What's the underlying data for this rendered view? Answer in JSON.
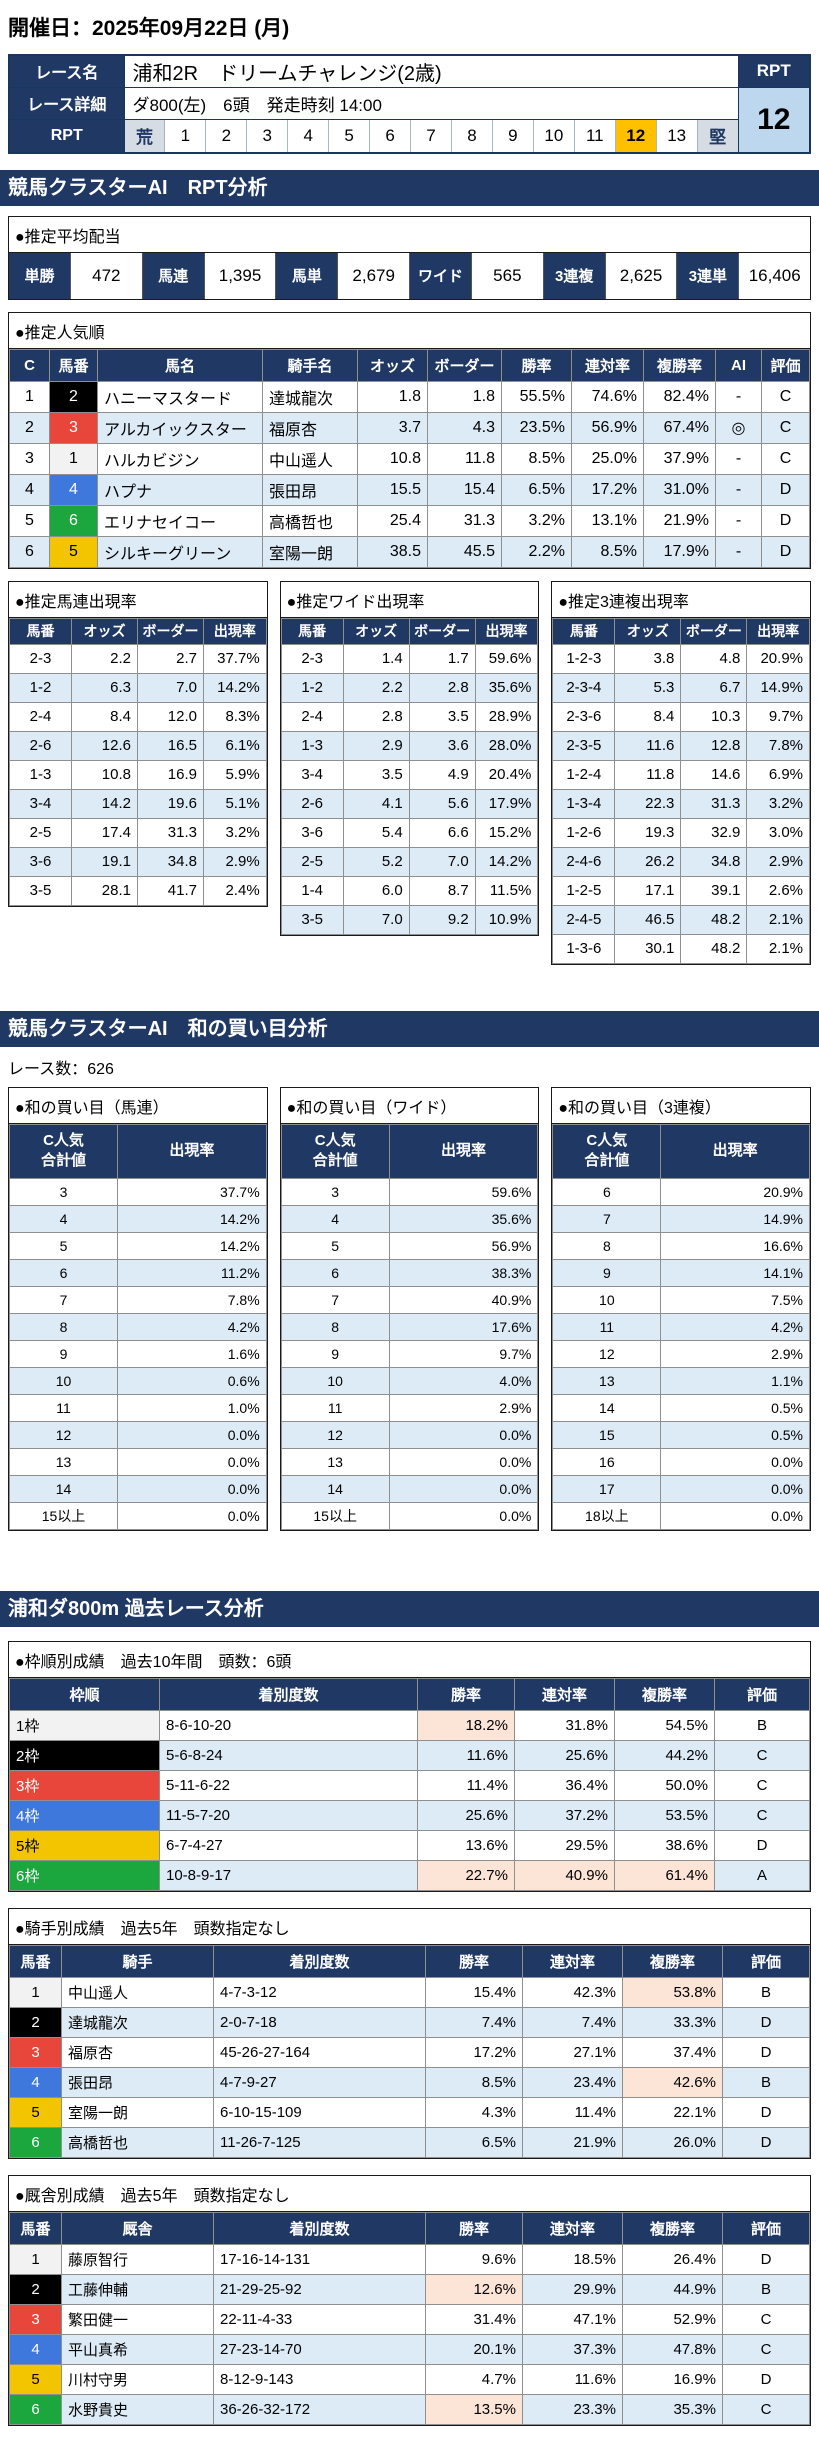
{
  "page": {
    "date_heading": "開催日：2025年09月22日 (月)"
  },
  "race_header": {
    "race_name_label": "レース名",
    "race_name": "浦和2R　ドリームチャレンジ(2歳)",
    "race_detail_label": "レース詳細",
    "race_detail": "ダ800(左)　6頭　発走時刻 14:00",
    "rpt_row_label": "RPT",
    "rpt_col_label": "RPT",
    "rpt_value": "12",
    "rpt_scale": [
      "荒",
      "1",
      "2",
      "3",
      "4",
      "5",
      "6",
      "7",
      "8",
      "9",
      "10",
      "11",
      "12",
      "13",
      "堅"
    ],
    "rpt_selected": "12"
  },
  "section_titles": {
    "rpt_analysis": "競馬クラスターAI　RPT分析",
    "wa_kaime": "競馬クラスターAI　和の買い目分析",
    "past_race": "浦和ダ800m 過去レース分析"
  },
  "race_count_line": "レース数：626",
  "payout": {
    "title": "●推定平均配当",
    "items": [
      {
        "label": "単勝",
        "value": "472"
      },
      {
        "label": "馬連",
        "value": "1,395"
      },
      {
        "label": "馬単",
        "value": "2,679"
      },
      {
        "label": "ワイド",
        "value": "565"
      },
      {
        "label": "3連複",
        "value": "2,625"
      },
      {
        "label": "3連単",
        "value": "16,406"
      }
    ]
  },
  "popularity": {
    "title": "●推定人気順",
    "headers": [
      "C",
      "馬番",
      "馬名",
      "騎手名",
      "オッズ",
      "ボーダー",
      "勝率",
      "連対率",
      "複勝率",
      "AI",
      "評価"
    ],
    "rows": [
      {
        "c": "1",
        "num": "2",
        "horse": "ハニーマスタード",
        "jockey": "達城龍次",
        "odds": "1.8",
        "border": "1.8",
        "win": "55.5%",
        "ren": "74.6%",
        "fuku": "82.4%",
        "ai": "-",
        "eval": "C"
      },
      {
        "c": "2",
        "num": "3",
        "horse": "アルカイックスター",
        "jockey": "福原杏",
        "odds": "3.7",
        "border": "4.3",
        "win": "23.5%",
        "ren": "56.9%",
        "fuku": "67.4%",
        "ai": "◎",
        "eval": "C"
      },
      {
        "c": "3",
        "num": "1",
        "horse": "ハルカビジン",
        "jockey": "中山遥人",
        "odds": "10.8",
        "border": "11.8",
        "win": "8.5%",
        "ren": "25.0%",
        "fuku": "37.9%",
        "ai": "-",
        "eval": "C"
      },
      {
        "c": "4",
        "num": "4",
        "horse": "ハプナ",
        "jockey": "張田昂",
        "odds": "15.5",
        "border": "15.4",
        "win": "6.5%",
        "ren": "17.2%",
        "fuku": "31.0%",
        "ai": "-",
        "eval": "D"
      },
      {
        "c": "5",
        "num": "6",
        "horse": "エリナセイコー",
        "jockey": "高橋哲也",
        "odds": "25.4",
        "border": "31.3",
        "win": "3.2%",
        "ren": "13.1%",
        "fuku": "21.9%",
        "ai": "-",
        "eval": "D"
      },
      {
        "c": "6",
        "num": "5",
        "horse": "シルキーグリーン",
        "jockey": "室陽一朗",
        "odds": "38.5",
        "border": "45.5",
        "win": "2.2%",
        "ren": "8.5%",
        "fuku": "17.9%",
        "ai": "-",
        "eval": "D"
      }
    ]
  },
  "prob_tables": [
    {
      "title": "●推定馬連出現率",
      "headers": [
        "馬番",
        "オッズ",
        "ボーダー",
        "出現率"
      ],
      "rows": [
        [
          "2-3",
          "2.2",
          "2.7",
          "37.7%"
        ],
        [
          "1-2",
          "6.3",
          "7.0",
          "14.2%"
        ],
        [
          "2-4",
          "8.4",
          "12.0",
          "8.3%"
        ],
        [
          "2-6",
          "12.6",
          "16.5",
          "6.1%"
        ],
        [
          "1-3",
          "10.8",
          "16.9",
          "5.9%"
        ],
        [
          "3-4",
          "14.2",
          "19.6",
          "5.1%"
        ],
        [
          "2-5",
          "17.4",
          "31.3",
          "3.2%"
        ],
        [
          "3-6",
          "19.1",
          "34.8",
          "2.9%"
        ],
        [
          "3-5",
          "28.1",
          "41.7",
          "2.4%"
        ]
      ]
    },
    {
      "title": "●推定ワイド出現率",
      "headers": [
        "馬番",
        "オッズ",
        "ボーダー",
        "出現率"
      ],
      "rows": [
        [
          "2-3",
          "1.4",
          "1.7",
          "59.6%"
        ],
        [
          "1-2",
          "2.2",
          "2.8",
          "35.6%"
        ],
        [
          "2-4",
          "2.8",
          "3.5",
          "28.9%"
        ],
        [
          "1-3",
          "2.9",
          "3.6",
          "28.0%"
        ],
        [
          "3-4",
          "3.5",
          "4.9",
          "20.4%"
        ],
        [
          "2-6",
          "4.1",
          "5.6",
          "17.9%"
        ],
        [
          "3-6",
          "5.4",
          "6.6",
          "15.2%"
        ],
        [
          "2-5",
          "5.2",
          "7.0",
          "14.2%"
        ],
        [
          "1-4",
          "6.0",
          "8.7",
          "11.5%"
        ],
        [
          "3-5",
          "7.0",
          "9.2",
          "10.9%"
        ]
      ]
    },
    {
      "title": "●推定3連複出現率",
      "headers": [
        "馬番",
        "オッズ",
        "ボーダー",
        "出現率"
      ],
      "rows": [
        [
          "1-2-3",
          "3.8",
          "4.8",
          "20.9%"
        ],
        [
          "2-3-4",
          "5.3",
          "6.7",
          "14.9%"
        ],
        [
          "2-3-6",
          "8.4",
          "10.3",
          "9.7%"
        ],
        [
          "2-3-5",
          "11.6",
          "12.8",
          "7.8%"
        ],
        [
          "1-2-4",
          "11.8",
          "14.6",
          "6.9%"
        ],
        [
          "1-3-4",
          "22.3",
          "31.3",
          "3.2%"
        ],
        [
          "1-2-6",
          "19.3",
          "32.9",
          "3.0%"
        ],
        [
          "2-4-6",
          "26.2",
          "34.8",
          "2.9%"
        ],
        [
          "1-2-5",
          "17.1",
          "39.1",
          "2.6%"
        ],
        [
          "2-4-5",
          "46.5",
          "48.2",
          "2.1%"
        ],
        [
          "1-3-6",
          "30.1",
          "48.2",
          "2.1%"
        ]
      ]
    }
  ],
  "kaime_tables": [
    {
      "title": "●和の買い目（馬連）",
      "col1": "C人気\n合計値",
      "col2": "出現率",
      "rows": [
        [
          "3",
          "37.7%"
        ],
        [
          "4",
          "14.2%"
        ],
        [
          "5",
          "14.2%"
        ],
        [
          "6",
          "11.2%"
        ],
        [
          "7",
          "7.8%"
        ],
        [
          "8",
          "4.2%"
        ],
        [
          "9",
          "1.6%"
        ],
        [
          "10",
          "0.6%"
        ],
        [
          "11",
          "1.0%"
        ],
        [
          "12",
          "0.0%"
        ],
        [
          "13",
          "0.0%"
        ],
        [
          "14",
          "0.0%"
        ],
        [
          "15以上",
          "0.0%"
        ]
      ]
    },
    {
      "title": "●和の買い目（ワイド）",
      "col1": "C人気\n合計値",
      "col2": "出現率",
      "rows": [
        [
          "3",
          "59.6%"
        ],
        [
          "4",
          "35.6%"
        ],
        [
          "5",
          "56.9%"
        ],
        [
          "6",
          "38.3%"
        ],
        [
          "7",
          "40.9%"
        ],
        [
          "8",
          "17.6%"
        ],
        [
          "9",
          "9.7%"
        ],
        [
          "10",
          "4.0%"
        ],
        [
          "11",
          "2.9%"
        ],
        [
          "12",
          "0.0%"
        ],
        [
          "13",
          "0.0%"
        ],
        [
          "14",
          "0.0%"
        ],
        [
          "15以上",
          "0.0%"
        ]
      ]
    },
    {
      "title": "●和の買い目（3連複）",
      "col1": "C人気\n合計値",
      "col2": "出現率",
      "rows": [
        [
          "6",
          "20.9%"
        ],
        [
          "7",
          "14.9%"
        ],
        [
          "8",
          "16.6%"
        ],
        [
          "9",
          "14.1%"
        ],
        [
          "10",
          "7.5%"
        ],
        [
          "11",
          "4.2%"
        ],
        [
          "12",
          "2.9%"
        ],
        [
          "13",
          "1.1%"
        ],
        [
          "14",
          "0.5%"
        ],
        [
          "15",
          "0.5%"
        ],
        [
          "16",
          "0.0%"
        ],
        [
          "17",
          "0.0%"
        ],
        [
          "18以上",
          "0.0%"
        ]
      ]
    }
  ],
  "past_tables": [
    {
      "title": "●枠順別成績　過去10年間　頭数：6頭",
      "headers": [
        "枠順",
        "着別度数",
        "勝率",
        "連対率",
        "複勝率",
        "評価"
      ],
      "rows": [
        {
          "label": "1枠",
          "waku": "1",
          "record": "8-6-10-20",
          "win": "18.2%",
          "ren": "31.8%",
          "fuku": "54.5%",
          "eval": "B",
          "hl": [
            "win"
          ]
        },
        {
          "label": "2枠",
          "waku": "2",
          "record": "5-6-8-24",
          "win": "11.6%",
          "ren": "25.6%",
          "fuku": "44.2%",
          "eval": "C",
          "hl": []
        },
        {
          "label": "3枠",
          "waku": "3",
          "record": "5-11-6-22",
          "win": "11.4%",
          "ren": "36.4%",
          "fuku": "50.0%",
          "eval": "C",
          "hl": []
        },
        {
          "label": "4枠",
          "waku": "4",
          "record": "11-5-7-20",
          "win": "25.6%",
          "ren": "37.2%",
          "fuku": "53.5%",
          "eval": "C",
          "hl": []
        },
        {
          "label": "5枠",
          "waku": "5",
          "record": "6-7-4-27",
          "win": "13.6%",
          "ren": "29.5%",
          "fuku": "38.6%",
          "eval": "D",
          "hl": []
        },
        {
          "label": "6枠",
          "waku": "6",
          "record": "10-8-9-17",
          "win": "22.7%",
          "ren": "40.9%",
          "fuku": "61.4%",
          "eval": "A",
          "hl": [
            "win",
            "ren",
            "fuku"
          ]
        }
      ]
    },
    {
      "title": "●騎手別成績　過去5年　頭数指定なし",
      "headers": [
        "馬番",
        "騎手",
        "着別度数",
        "勝率",
        "連対率",
        "複勝率",
        "評価"
      ],
      "rows": [
        {
          "num": "1",
          "name": "中山遥人",
          "record": "4-7-3-12",
          "win": "15.4%",
          "ren": "42.3%",
          "fuku": "53.8%",
          "eval": "B",
          "hl": [
            "fuku"
          ]
        },
        {
          "num": "2",
          "name": "達城龍次",
          "record": "2-0-7-18",
          "win": "7.4%",
          "ren": "7.4%",
          "fuku": "33.3%",
          "eval": "D",
          "hl": []
        },
        {
          "num": "3",
          "name": "福原杏",
          "record": "45-26-27-164",
          "win": "17.2%",
          "ren": "27.1%",
          "fuku": "37.4%",
          "eval": "D",
          "hl": []
        },
        {
          "num": "4",
          "name": "張田昂",
          "record": "4-7-9-27",
          "win": "8.5%",
          "ren": "23.4%",
          "fuku": "42.6%",
          "eval": "B",
          "hl": [
            "fuku"
          ]
        },
        {
          "num": "5",
          "name": "室陽一朗",
          "record": "6-10-15-109",
          "win": "4.3%",
          "ren": "11.4%",
          "fuku": "22.1%",
          "eval": "D",
          "hl": []
        },
        {
          "num": "6",
          "name": "高橋哲也",
          "record": "11-26-7-125",
          "win": "6.5%",
          "ren": "21.9%",
          "fuku": "26.0%",
          "eval": "D",
          "hl": []
        }
      ]
    },
    {
      "title": "●厩舎別成績　過去5年　頭数指定なし",
      "headers": [
        "馬番",
        "厩舎",
        "着別度数",
        "勝率",
        "連対率",
        "複勝率",
        "評価"
      ],
      "rows": [
        {
          "num": "1",
          "name": "藤原智行",
          "record": "17-16-14-131",
          "win": "9.6%",
          "ren": "18.5%",
          "fuku": "26.4%",
          "eval": "D",
          "hl": []
        },
        {
          "num": "2",
          "name": "工藤伸輔",
          "record": "21-29-25-92",
          "win": "12.6%",
          "ren": "29.9%",
          "fuku": "44.9%",
          "eval": "B",
          "hl": [
            "win"
          ]
        },
        {
          "num": "3",
          "name": "繁田健一",
          "record": "22-11-4-33",
          "win": "31.4%",
          "ren": "47.1%",
          "fuku": "52.9%",
          "eval": "C",
          "hl": []
        },
        {
          "num": "4",
          "name": "平山真希",
          "record": "27-23-14-70",
          "win": "20.1%",
          "ren": "37.3%",
          "fuku": "47.8%",
          "eval": "C",
          "hl": []
        },
        {
          "num": "5",
          "name": "川村守男",
          "record": "8-12-9-143",
          "win": "4.7%",
          "ren": "11.6%",
          "fuku": "16.9%",
          "eval": "D",
          "hl": []
        },
        {
          "num": "6",
          "name": "水野貴史",
          "record": "36-26-32-172",
          "win": "13.5%",
          "ren": "23.3%",
          "fuku": "35.3%",
          "eval": "C",
          "hl": [
            "win"
          ]
        }
      ]
    }
  ],
  "colors": {
    "navy": "#1f3864",
    "row_alt": "#ddebf7",
    "highlight": "#fce4d6",
    "rpt_selected_bg": "#ffc000",
    "rpt_scale_end_bg": "#d6dce4",
    "rpt_value_bg": "#bdd7ee",
    "waku_bg": {
      "1": "#f2f2f2",
      "2": "#000000",
      "3": "#e8463b",
      "4": "#3e78dc",
      "5": "#f3c500",
      "6": "#1ca63e"
    },
    "waku_text": {
      "1": "#000000",
      "2": "#ffffff",
      "3": "#ffffff",
      "4": "#ffffff",
      "5": "#000000",
      "6": "#ffffff"
    }
  }
}
